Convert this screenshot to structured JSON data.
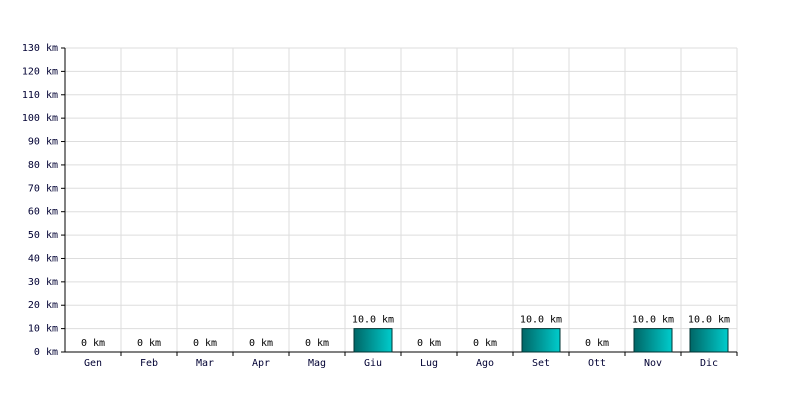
{
  "chart_data": {
    "type": "bar",
    "categories": [
      "Gen",
      "Feb",
      "Mar",
      "Apr",
      "Mag",
      "Giu",
      "Lug",
      "Ago",
      "Set",
      "Ott",
      "Nov",
      "Dic"
    ],
    "values": [
      0,
      0,
      0,
      0,
      0,
      10,
      0,
      0,
      10,
      0,
      10,
      10
    ],
    "value_labels": [
      "0 km",
      "0 km",
      "0 km",
      "0 km",
      "0 km",
      "10.0 km",
      "0 km",
      "0 km",
      "10.0 km",
      "0 km",
      "10.0 km",
      "10.0 km"
    ],
    "color": "#00cccc",
    "ylim": [
      0,
      130
    ],
    "yticks": [
      {
        "value": 0,
        "label": "0 km"
      },
      {
        "value": 10,
        "label": "10 km"
      },
      {
        "value": 20,
        "label": "20 km"
      },
      {
        "value": 30,
        "label": "30 km"
      },
      {
        "value": 40,
        "label": "40 km"
      },
      {
        "value": 50,
        "label": "50 km"
      },
      {
        "value": 60,
        "label": "60 km"
      },
      {
        "value": 70,
        "label": "70 km"
      },
      {
        "value": 80,
        "label": "80 km"
      },
      {
        "value": 90,
        "label": "90 km"
      },
      {
        "value": 100,
        "label": "100 km"
      },
      {
        "value": 110,
        "label": "110 km"
      },
      {
        "value": 120,
        "label": "120 km"
      },
      {
        "value": 130,
        "label": "130 km"
      }
    ],
    "grid": true
  }
}
